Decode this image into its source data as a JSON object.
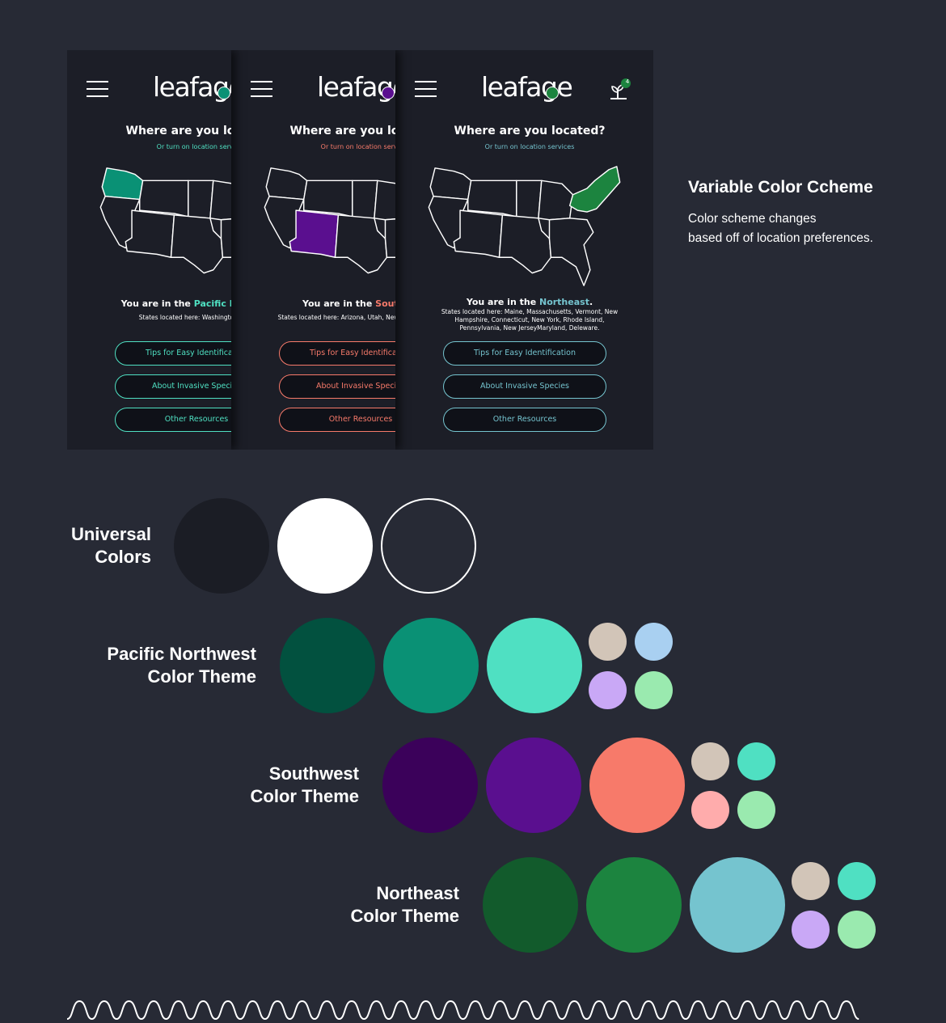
{
  "app": {
    "logo": "leafage",
    "sprout_count": "4",
    "question": "Where are you located?",
    "location_hint": "Or turn on location services",
    "you_are_in": "You are in the"
  },
  "buttons": [
    "Tips for Easy Identification",
    "About Invasive Species",
    "Other Resources"
  ],
  "phones": [
    {
      "region": "Pacific Northwest",
      "states": "States located here: Washington, Oregon",
      "accent": "#4fe0c2",
      "highlight": "#0a9175"
    },
    {
      "region": "Southwest",
      "states": "States located here: Arizona, Utah, New Mexico, Colorado",
      "accent": "#f77a6a",
      "highlight": "#5a0f8f"
    },
    {
      "region": "Northeast",
      "region_suffix": ".",
      "states_lines": [
        "States located here: Maine, Massachusetts, Vermont, New",
        "Hampshire, Connecticut, New York, Rhode Island,",
        "Pennsylvania, New JerseyMaryland, Deleware."
      ],
      "accent": "#75c4cf",
      "highlight": "#1c843f"
    }
  ],
  "feature": {
    "title": "Variable Color Ccheme",
    "description_lines": [
      "Color scheme changes",
      "based off of location preferences."
    ]
  },
  "palettes": [
    {
      "label_lines": [
        "Universal",
        "Colors"
      ],
      "main": [
        "#1b1d25",
        "#ffffff",
        "#272a35"
      ],
      "outlined": [
        false,
        false,
        true
      ],
      "small": []
    },
    {
      "label_lines": [
        "Pacific Northwest",
        "Color Theme"
      ],
      "main": [
        "#02513f",
        "#0a9175",
        "#4fe0c2"
      ],
      "small": [
        "#d2c5b8",
        "#a9d0f1",
        "#c9a8f6",
        "#9aeaaf"
      ]
    },
    {
      "label_lines": [
        "Southwest",
        "Color Theme"
      ],
      "main": [
        "#3b015a",
        "#5a0f8f",
        "#f77a6a"
      ],
      "small": [
        "#d2c5b8",
        "#4fe0c2",
        "#ffacac",
        "#9aeaaf"
      ]
    },
    {
      "label_lines": [
        "Northeast",
        "Color Theme"
      ],
      "main": [
        "#125b2c",
        "#1c843f",
        "#75c4cf"
      ],
      "small": [
        "#d2c5b8",
        "#4fe0c2",
        "#c9a8f6",
        "#9aeaaf"
      ]
    }
  ]
}
